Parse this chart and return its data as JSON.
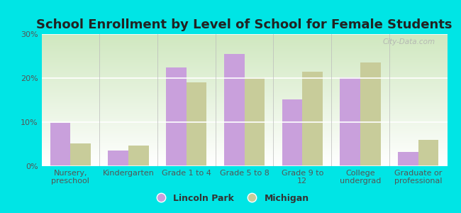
{
  "title": "School Enrollment by Level of School for Female Students",
  "categories": [
    "Nursery,\npreschool",
    "Kindergarten",
    "Grade 1 to 4",
    "Grade 5 to 8",
    "Grade 9 to\n12",
    "College\nundergrad",
    "Graduate or\nprofessional"
  ],
  "lincoln_park": [
    9.9,
    3.5,
    22.5,
    25.5,
    15.2,
    20.2,
    3.3
  ],
  "michigan": [
    5.1,
    4.7,
    19.0,
    20.1,
    21.5,
    23.5,
    6.0
  ],
  "color_lp": "#c9a0dc",
  "color_mi": "#c8cc9a",
  "background_outer": "#00e5e5",
  "background_inner_top": "#ffffff",
  "background_inner_bot": "#d8edcc",
  "ylim": [
    0,
    30
  ],
  "yticks": [
    0,
    10,
    20,
    30
  ],
  "ytick_labels": [
    "0%",
    "10%",
    "20%",
    "30%"
  ],
  "legend_lp": "Lincoln Park",
  "legend_mi": "Michigan",
  "title_fontsize": 13,
  "label_fontsize": 8,
  "watermark": "City-Data.com"
}
